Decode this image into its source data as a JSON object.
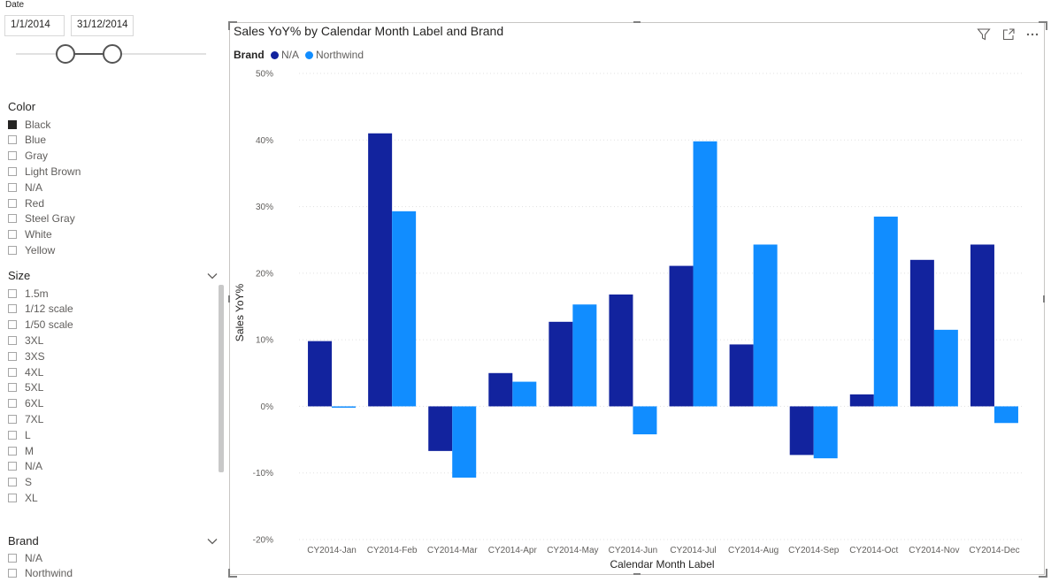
{
  "date_slicer": {
    "title": "Date",
    "start": "1/1/2014",
    "end": "31/12/2014"
  },
  "color_slicer": {
    "title": "Color",
    "items": [
      {
        "label": "Black",
        "checked": true
      },
      {
        "label": "Blue",
        "checked": false
      },
      {
        "label": "Gray",
        "checked": false
      },
      {
        "label": "Light Brown",
        "checked": false
      },
      {
        "label": "N/A",
        "checked": false
      },
      {
        "label": "Red",
        "checked": false
      },
      {
        "label": "Steel Gray",
        "checked": false
      },
      {
        "label": "White",
        "checked": false
      },
      {
        "label": "Yellow",
        "checked": false
      }
    ]
  },
  "size_slicer": {
    "title": "Size",
    "items": [
      "1.5m",
      "1/12 scale",
      "1/50 scale",
      "3XL",
      "3XS",
      "4XL",
      "5XL",
      "6XL",
      "7XL",
      "L",
      "M",
      "N/A",
      "S",
      "XL"
    ]
  },
  "brand_slicer": {
    "title": "Brand",
    "items": [
      "N/A",
      "Northwind"
    ]
  },
  "header_icons": [
    "filter-icon",
    "focus-mode-icon",
    "more-options-icon"
  ],
  "colors": {
    "na_series": "#12239e",
    "northwind_series": "#118dff",
    "grid": "#e1e1e1"
  },
  "chart_data": {
    "type": "bar",
    "title": "Sales YoY% by Calendar Month Label and Brand",
    "legend_title": "Brand",
    "legend_position": "top-left",
    "xlabel": "Calendar Month Label",
    "ylabel": "Sales YoY%",
    "ylim": [
      -20,
      50
    ],
    "yticks": [
      50,
      40,
      30,
      20,
      10,
      0,
      -10,
      -20
    ],
    "ytick_labels": [
      "50%",
      "40%",
      "30%",
      "20%",
      "10%",
      "0%",
      "-10%",
      "-20%"
    ],
    "grid": true,
    "categories": [
      "CY2014-Jan",
      "CY2014-Feb",
      "CY2014-Mar",
      "CY2014-Apr",
      "CY2014-May",
      "CY2014-Jun",
      "CY2014-Jul",
      "CY2014-Aug",
      "CY2014-Sep",
      "CY2014-Oct",
      "CY2014-Nov",
      "CY2014-Dec"
    ],
    "series": [
      {
        "name": "N/A",
        "color": "#12239e",
        "values": [
          9.8,
          41.0,
          -6.7,
          5.0,
          12.7,
          16.8,
          21.1,
          9.3,
          -7.3,
          1.8,
          22.0,
          24.3
        ]
      },
      {
        "name": "Northwind",
        "color": "#118dff",
        "values": [
          -0.2,
          29.3,
          -10.7,
          3.7,
          15.3,
          -4.2,
          39.8,
          24.3,
          -7.8,
          28.5,
          11.5,
          -2.5
        ]
      }
    ]
  }
}
